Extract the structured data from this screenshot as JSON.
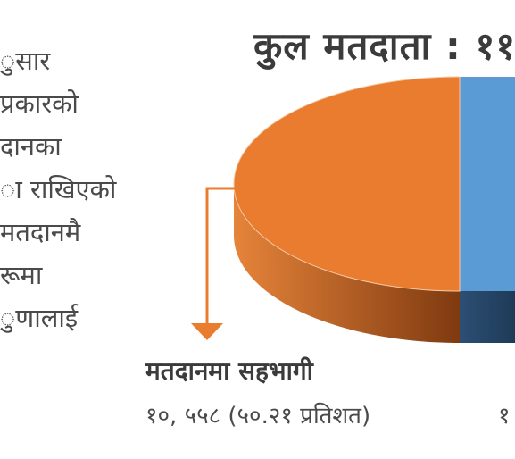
{
  "left_text": {
    "lines": [
      "ुसार",
      "प्रकारको",
      "दानका",
      "ा राखिएको",
      "मतदानमै",
      "रूमा",
      "ुणालाई"
    ]
  },
  "chart_data": {
    "type": "pie",
    "title": "कुल मतदाता : ११",
    "slices": [
      {
        "name": "मतदानमा सहभागी",
        "label": "मतदानमा सहभागी",
        "value_text": "१०, ५५८ (५०.२१ प्रतिशत)",
        "percent": 50.21,
        "color": "#e97c2f"
      },
      {
        "label": "",
        "value_text": "१",
        "percent": 49.79,
        "color": "#5b9bd5"
      }
    ],
    "legend": "none"
  },
  "colors": {
    "orange_top": "#e97c2f",
    "orange_side": "#9a4a16",
    "blue_top": "#5b9bd5",
    "blue_side": "#2f5379",
    "arrow": "#e97c2f"
  }
}
